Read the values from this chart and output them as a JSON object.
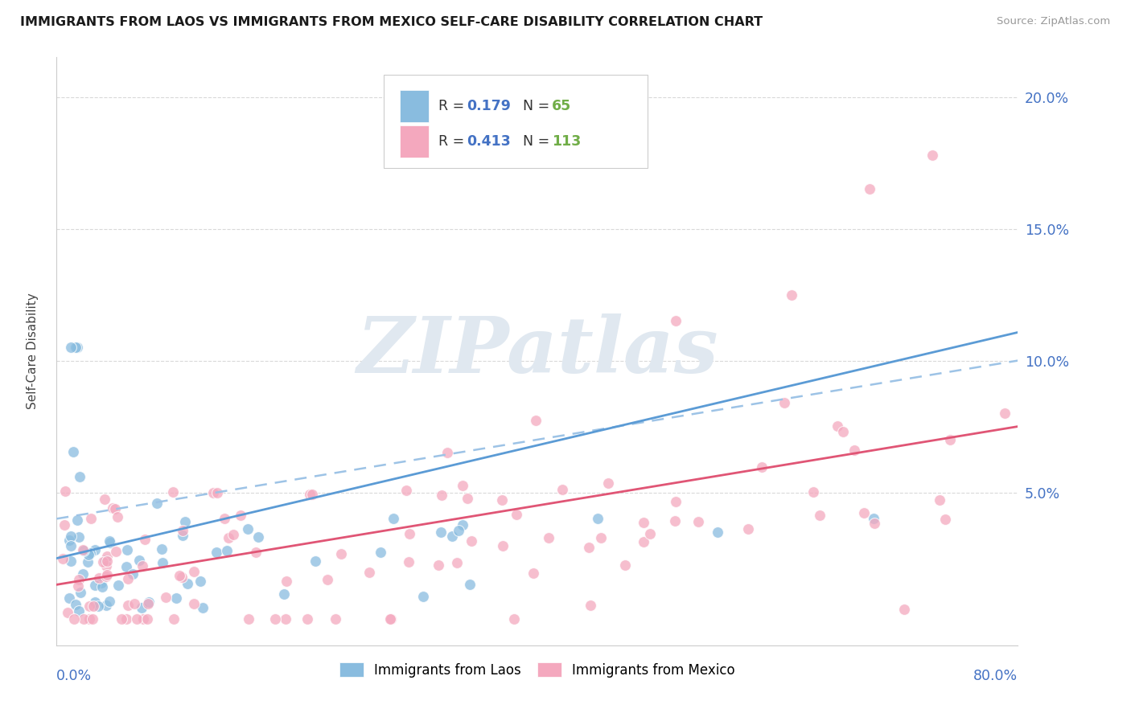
{
  "title": "IMMIGRANTS FROM LAOS VS IMMIGRANTS FROM MEXICO SELF-CARE DISABILITY CORRELATION CHART",
  "source": "Source: ZipAtlas.com",
  "ylabel": "Self-Care Disability",
  "xlim": [
    0.0,
    0.8
  ],
  "ylim": [
    -0.008,
    0.215
  ],
  "yticks": [
    0.0,
    0.05,
    0.1,
    0.15,
    0.2
  ],
  "ytick_labels": [
    "",
    "5.0%",
    "10.0%",
    "15.0%",
    "20.0%"
  ],
  "color_laos": "#89bcdf",
  "color_mexico": "#f4a8be",
  "color_laos_trend": "#5b9bd5",
  "color_laos_dashed": "#9dc3e6",
  "color_mexico_trend": "#e05575",
  "color_r": "#4472c4",
  "color_n": "#70ad47",
  "watermark_color": "#e0e8f0",
  "grid_color": "#d9d9d9",
  "legend_box_color": "#cccccc",
  "bottom_spine_color": "#cccccc"
}
